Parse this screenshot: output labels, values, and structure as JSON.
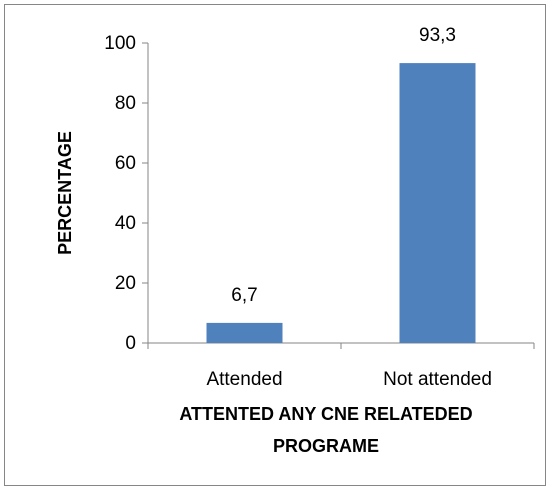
{
  "chart_data": {
    "type": "bar",
    "categories": [
      "Attended",
      "Not attended"
    ],
    "values": [
      6.7,
      93.3
    ],
    "data_labels": [
      "6,7",
      "93,3"
    ],
    "title": "",
    "xlabel": [
      "ATTENTED ANY CNE RELATEDED",
      "PROGRAME"
    ],
    "ylabel": "PERCENTAGE",
    "ylim": [
      0,
      100
    ],
    "yticks": [
      0,
      20,
      40,
      60,
      80,
      100
    ],
    "grid": false,
    "legend": "none",
    "bar_color": "#4F81BD",
    "axis_color": "#868686"
  }
}
